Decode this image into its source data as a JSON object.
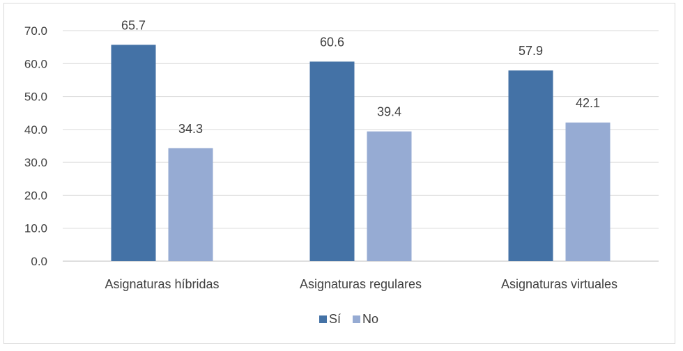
{
  "chart_data": {
    "type": "bar",
    "categories": [
      "Asignaturas híbridas",
      "Asignaturas regulares",
      "Asignaturas virtuales"
    ],
    "series": [
      {
        "name": "Sí",
        "values": [
          65.7,
          60.6,
          57.9
        ],
        "color": "#4472a6"
      },
      {
        "name": "No",
        "values": [
          34.3,
          39.4,
          42.1
        ],
        "color": "#96abd3"
      }
    ],
    "ylim": [
      0,
      70
    ],
    "yticks": [
      "0.0",
      "10.0",
      "20.0",
      "30.0",
      "40.0",
      "50.0",
      "60.0",
      "70.0"
    ],
    "grid": true,
    "legend_position": "bottom",
    "data_labels": true
  }
}
